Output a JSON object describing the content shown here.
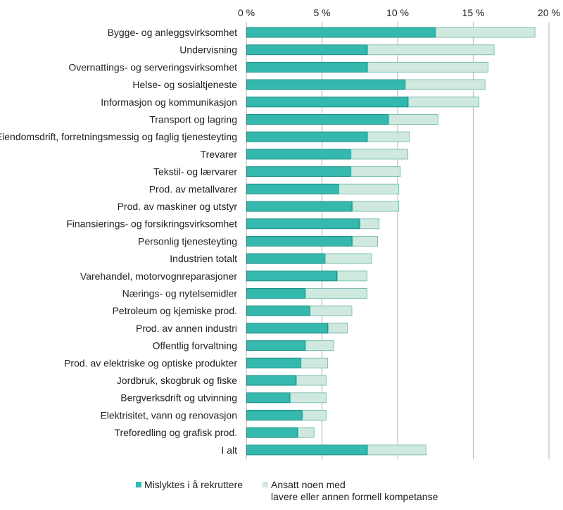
{
  "chart_data": {
    "type": "bar",
    "orientation": "horizontal",
    "stacked": true,
    "title": "",
    "xlabel": "",
    "ylabel": "",
    "xlim": [
      0,
      20
    ],
    "x_ticks": [
      0,
      5,
      10,
      15,
      20
    ],
    "x_tick_labels": [
      "0 %",
      "5 %",
      "10 %",
      "15 %",
      "20 %"
    ],
    "grid": true,
    "legend_position": "bottom",
    "categories": [
      "Bygge- og anleggsvirksomhet",
      "Undervisning",
      "Overnattings- og serveringsvirksomhet",
      "Helse- og sosialtjeneste",
      "Informasjon og kommunikasjon",
      "Transport og lagring",
      "Eiendomsdrift, forretningsmessig og faglig tjenesteyting",
      "Trevarer",
      "Tekstil- og lærvarer",
      "Prod. av metallvarer",
      "Prod. av maskiner og utstyr",
      "Finansierings- og forsikringsvirksomhet",
      "Personlig tjenesteyting",
      "Industrien totalt",
      "Varehandel, motorvognreparasjoner",
      "Nærings- og nytelsemidler",
      "Petroleum og kjemiske prod.",
      "Prod. av annen industri",
      "Offentlig forvaltning",
      "Prod. av elektriske og optiske produkter",
      "Jordbruk, skogbruk og fiske",
      "Bergverksdrift og utvinning",
      "Elektrisitet, vann og renovasjon",
      "Treforedling og grafisk prod.",
      "I alt"
    ],
    "series": [
      {
        "name": "Mislyktes i å rekruttere",
        "color": "#35b8ad",
        "border": "#1f8f85",
        "values": [
          12.5,
          8.0,
          8.0,
          10.5,
          10.7,
          9.4,
          8.0,
          6.9,
          6.9,
          6.1,
          7.0,
          7.5,
          7.0,
          5.2,
          6.0,
          3.9,
          4.2,
          5.4,
          3.9,
          3.6,
          3.3,
          2.9,
          3.7,
          3.4,
          8.0
        ]
      },
      {
        "name": "Ansatt noen med lavere eller annen formell kompetanse",
        "name_lines": [
          "Ansatt noen med",
          "lavere eller annen formell kompetanse"
        ],
        "color": "#cfe9df",
        "border": "#7fbfb5",
        "values": [
          6.6,
          8.4,
          8.0,
          5.3,
          4.7,
          3.3,
          2.8,
          3.8,
          3.3,
          4.0,
          3.1,
          1.3,
          1.7,
          3.1,
          2.0,
          4.1,
          2.8,
          1.3,
          1.9,
          1.8,
          2.0,
          2.4,
          1.6,
          1.1,
          3.9
        ]
      }
    ],
    "gridline_color": "#bdbdbd"
  }
}
